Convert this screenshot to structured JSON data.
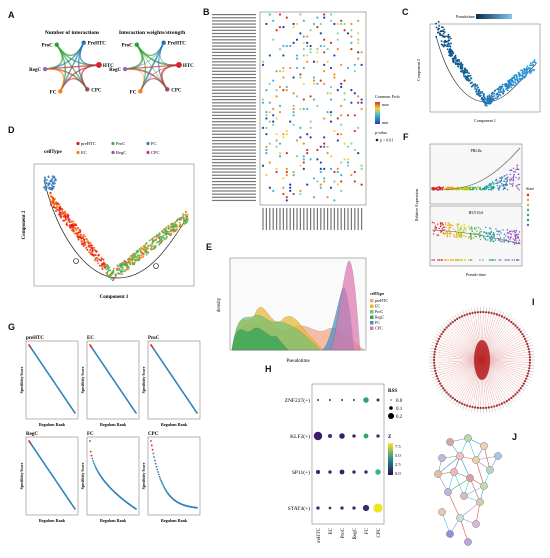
{
  "panel_labels": {
    "a": "A",
    "b": "B",
    "c": "C",
    "d": "D",
    "e": "E",
    "f": "F",
    "g": "G",
    "h": "H",
    "i": "I",
    "j": "J"
  },
  "panel_a": {
    "title_left": "Number of interactions",
    "title_right": "Interaction weights/strength",
    "nodes": [
      "ProC",
      "PreHTC",
      "HTC",
      "CPC",
      "FC",
      "RegC"
    ],
    "node_colors": [
      "#2ca02c",
      "#1f77b4",
      "#d62728",
      "#8c564b",
      "#ff7f0e",
      "#9467bd"
    ]
  },
  "panel_b": {
    "legend_title": "Commun. Prob.",
    "legend_max": "max",
    "legend_min": "min",
    "pval_title": "p-value",
    "pval_items": [
      "p < 0.01"
    ]
  },
  "panel_c": {
    "legend_title": "Pseudotime",
    "xlabel": "Component 1",
    "ylabel": "Component 2"
  },
  "panel_d": {
    "legend_title": "cellType",
    "legend_items": [
      {
        "name": "preHTC",
        "color": "#e41a1c"
      },
      {
        "name": "ProC",
        "color": "#4daf4a"
      },
      {
        "name": "FC",
        "color": "#377eb8"
      },
      {
        "name": "EC",
        "color": "#ff7f00"
      },
      {
        "name": "RegC",
        "color": "#984ea3"
      },
      {
        "name": "CPC",
        "color": "#e7298a"
      }
    ],
    "xlabel": "Component 1",
    "ylabel": "Component 2"
  },
  "panel_e": {
    "xlabel": "Pseudotime",
    "ylabel": "density",
    "legend_title": "cellType",
    "legend_items": [
      {
        "name": "preHTC",
        "color": "#f4a582"
      },
      {
        "name": "EC",
        "color": "#e7b830"
      },
      {
        "name": "ProC",
        "color": "#74c476"
      },
      {
        "name": "RegC",
        "color": "#31a354"
      },
      {
        "name": "FC",
        "color": "#4292c6"
      },
      {
        "name": "CPC",
        "color": "#de77ae"
      }
    ]
  },
  "panel_f": {
    "top_title": "PRL8a",
    "bottom_title": "HLY16A",
    "xlabel": "Pseudo-time",
    "ylabel": "Relative Expression",
    "legend_title": "State"
  },
  "panel_g": {
    "xlabel": "Regulons Rank",
    "ylabel": "Specificity Score",
    "subplots": [
      {
        "title": "preHTC"
      },
      {
        "title": "EC"
      },
      {
        "title": "ProC"
      },
      {
        "title": "RegC"
      },
      {
        "title": "FC"
      },
      {
        "title": "CPC"
      }
    ]
  },
  "panel_h": {
    "rows": [
      "ZNF227(+)",
      "KLF2(+)",
      "SP11(+)",
      "STAT4(+)"
    ],
    "cols": [
      "preHTC",
      "EC",
      "ProC",
      "RegC",
      "FC",
      "CPC"
    ],
    "rss_title": "RSS",
    "rss_items": [
      "0.0",
      "0.1",
      "0.2"
    ],
    "z_title": "Z",
    "z_ticks": [
      "7.5",
      "5.0",
      "2.5",
      "0.0"
    ]
  }
}
